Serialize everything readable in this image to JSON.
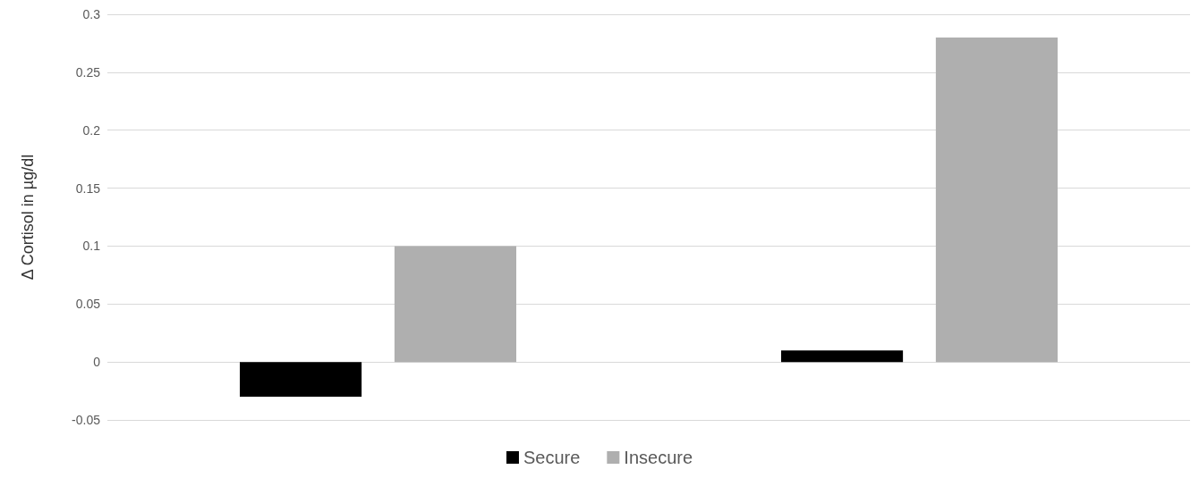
{
  "chart_data": {
    "type": "bar",
    "ylabel": "Δ Cortisol in µg/dl",
    "categories": [
      null,
      null
    ],
    "series": [
      {
        "name": "Secure",
        "color": "#000000",
        "values": [
          -0.03,
          0.01
        ]
      },
      {
        "name": "Insecure",
        "color": "#afafaf",
        "values": [
          0.1,
          0.28
        ]
      }
    ],
    "ylim": [
      -0.05,
      0.3
    ],
    "yticks": [
      -0.05,
      0,
      0.05,
      0.1,
      0.15,
      0.2,
      0.25,
      0.3
    ],
    "grid": "y",
    "legend": "bottom"
  }
}
